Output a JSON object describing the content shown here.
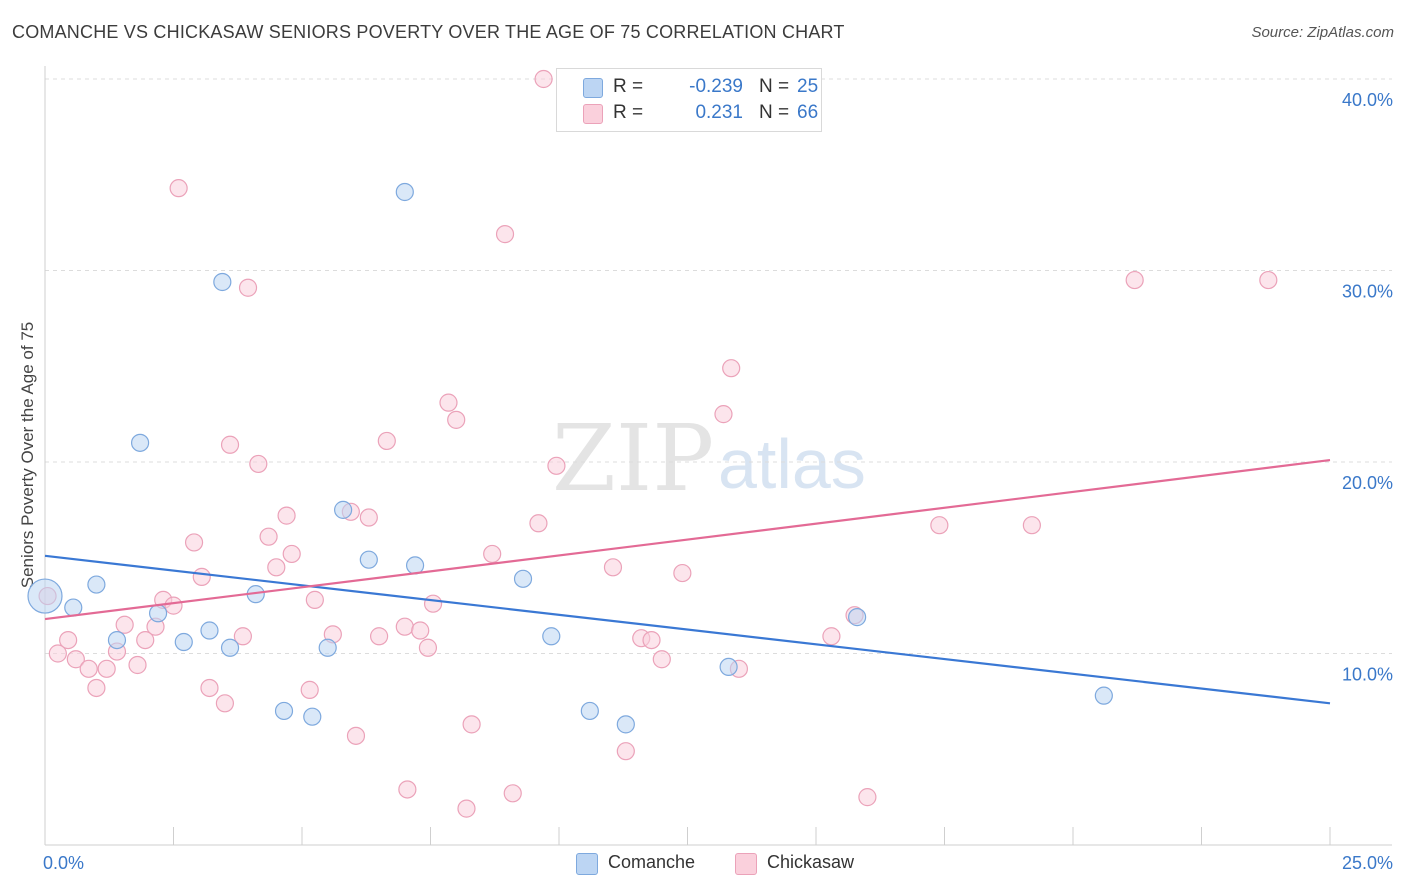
{
  "title": "COMANCHE VS CHICKASAW SENIORS POVERTY OVER THE AGE OF 75 CORRELATION CHART",
  "source": "Source: ZipAtlas.com",
  "watermark": {
    "zip": "ZIP",
    "atlas": "atlas"
  },
  "legend_top": [
    {
      "r_label": "R =",
      "r_value": "-0.239",
      "n_label": "N =",
      "n_value": "25",
      "color": "#a9c8ee"
    },
    {
      "r_label": "R =",
      "r_value": "0.231",
      "n_label": "N =",
      "n_value": "66",
      "color": "#f5b8cb"
    }
  ],
  "legend_bottom": [
    {
      "label": "Comanche",
      "color": "#a9c8ee"
    },
    {
      "label": "Chickasaw",
      "color": "#f5b8cb"
    }
  ],
  "chart_data": {
    "type": "scatter",
    "title": "COMANCHE VS CHICKASAW SENIORS POVERTY OVER THE AGE OF 75 CORRELATION CHART",
    "xlabel": "",
    "ylabel": "Seniors Poverty Over the Age of 75",
    "xlim": [
      0,
      25
    ],
    "ylim": [
      0,
      40
    ],
    "x_tick_labels": [
      "0.0%",
      "25.0%"
    ],
    "y_ticks": [
      10,
      20,
      30,
      40
    ],
    "y_tick_labels": [
      "10.0%",
      "20.0%",
      "30.0%",
      "40.0%"
    ],
    "grid": true,
    "colors": {
      "Comanche": "#3a78d4",
      "Chickasaw": "#e36a95"
    },
    "series": [
      {
        "name": "Comanche",
        "r": -0.239,
        "n": 25,
        "trend": {
          "x": [
            0,
            25
          ],
          "y": [
            15.1,
            7.4
          ]
        },
        "points": [
          [
            0.0,
            13.0
          ],
          [
            0.55,
            12.4
          ],
          [
            1.0,
            13.6
          ],
          [
            1.4,
            10.7
          ],
          [
            1.85,
            21.0
          ],
          [
            2.2,
            12.1
          ],
          [
            2.7,
            10.6
          ],
          [
            3.2,
            11.2
          ],
          [
            3.45,
            29.4
          ],
          [
            3.6,
            10.3
          ],
          [
            4.1,
            13.1
          ],
          [
            4.65,
            7.0
          ],
          [
            5.2,
            6.7
          ],
          [
            5.5,
            10.3
          ],
          [
            5.8,
            17.5
          ],
          [
            6.3,
            14.9
          ],
          [
            7.0,
            34.1
          ],
          [
            7.2,
            14.6
          ],
          [
            9.3,
            13.9
          ],
          [
            9.85,
            10.9
          ],
          [
            10.6,
            7.0
          ],
          [
            11.3,
            6.3
          ],
          [
            13.3,
            9.3
          ],
          [
            15.8,
            11.9
          ],
          [
            20.6,
            7.8
          ]
        ]
      },
      {
        "name": "Chickasaw",
        "r": 0.231,
        "n": 66,
        "trend": {
          "x": [
            0,
            25
          ],
          "y": [
            11.8,
            20.1
          ]
        },
        "points": [
          [
            0.05,
            13.0
          ],
          [
            0.25,
            10.0
          ],
          [
            0.45,
            10.7
          ],
          [
            0.6,
            9.7
          ],
          [
            0.85,
            9.2
          ],
          [
            1.0,
            8.2
          ],
          [
            1.2,
            9.2
          ],
          [
            1.4,
            10.1
          ],
          [
            1.55,
            11.5
          ],
          [
            1.8,
            9.4
          ],
          [
            1.95,
            10.7
          ],
          [
            2.15,
            11.4
          ],
          [
            2.3,
            12.8
          ],
          [
            2.5,
            12.5
          ],
          [
            2.6,
            34.3
          ],
          [
            2.9,
            15.8
          ],
          [
            3.05,
            14.0
          ],
          [
            3.2,
            8.2
          ],
          [
            3.5,
            7.4
          ],
          [
            3.6,
            20.9
          ],
          [
            3.85,
            10.9
          ],
          [
            3.95,
            29.1
          ],
          [
            4.15,
            19.9
          ],
          [
            4.35,
            16.1
          ],
          [
            4.5,
            14.5
          ],
          [
            4.7,
            17.2
          ],
          [
            4.8,
            15.2
          ],
          [
            5.15,
            8.1
          ],
          [
            5.25,
            12.8
          ],
          [
            5.6,
            11.0
          ],
          [
            5.95,
            17.4
          ],
          [
            6.05,
            5.7
          ],
          [
            6.3,
            17.1
          ],
          [
            6.5,
            10.9
          ],
          [
            6.65,
            21.1
          ],
          [
            7.0,
            11.4
          ],
          [
            7.05,
            2.9
          ],
          [
            7.3,
            11.2
          ],
          [
            7.45,
            10.3
          ],
          [
            7.55,
            12.6
          ],
          [
            7.85,
            23.1
          ],
          [
            8.0,
            22.2
          ],
          [
            8.2,
            1.9
          ],
          [
            8.3,
            6.3
          ],
          [
            8.7,
            15.2
          ],
          [
            8.95,
            31.9
          ],
          [
            9.1,
            2.7
          ],
          [
            9.6,
            16.8
          ],
          [
            9.7,
            40.0
          ],
          [
            9.95,
            19.8
          ],
          [
            11.05,
            14.5
          ],
          [
            11.3,
            4.9
          ],
          [
            11.6,
            10.8
          ],
          [
            11.8,
            10.7
          ],
          [
            12.0,
            9.7
          ],
          [
            12.4,
            14.2
          ],
          [
            13.2,
            22.5
          ],
          [
            13.35,
            24.9
          ],
          [
            13.5,
            9.2
          ],
          [
            15.3,
            10.9
          ],
          [
            15.75,
            12.0
          ],
          [
            16.0,
            2.5
          ],
          [
            17.4,
            16.7
          ],
          [
            19.2,
            16.7
          ],
          [
            21.2,
            29.5
          ],
          [
            23.8,
            29.5
          ]
        ]
      }
    ]
  }
}
